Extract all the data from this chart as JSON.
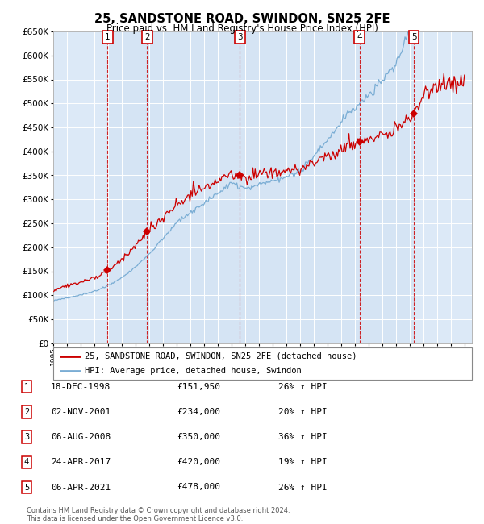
{
  "title": "25, SANDSTONE ROAD, SWINDON, SN25 2FE",
  "subtitle": "Price paid vs. HM Land Registry's House Price Index (HPI)",
  "background_color": "#ffffff",
  "plot_bg_color": "#dce9f7",
  "grid_color": "#ffffff",
  "ylim": [
    0,
    650000
  ],
  "yticks": [
    0,
    50000,
    100000,
    150000,
    200000,
    250000,
    300000,
    350000,
    400000,
    450000,
    500000,
    550000,
    600000,
    650000
  ],
  "sale_dates_num": [
    1998.96,
    2001.84,
    2008.6,
    2017.31,
    2021.27
  ],
  "sale_prices": [
    151950,
    234000,
    350000,
    420000,
    478000
  ],
  "sale_labels": [
    "1",
    "2",
    "3",
    "4",
    "5"
  ],
  "sale_date_strings": [
    "18-DEC-1998",
    "02-NOV-2001",
    "06-AUG-2008",
    "24-APR-2017",
    "06-APR-2021"
  ],
  "sale_pct_hpi": [
    "26%",
    "20%",
    "36%",
    "19%",
    "26%"
  ],
  "legend_property": "25, SANDSTONE ROAD, SWINDON, SN25 2FE (detached house)",
  "legend_hpi": "HPI: Average price, detached house, Swindon",
  "footer1": "Contains HM Land Registry data © Crown copyright and database right 2024.",
  "footer2": "This data is licensed under the Open Government Licence v3.0.",
  "red_line_color": "#cc0000",
  "blue_line_color": "#7aadd4",
  "dashed_vert_color": "#cc0000",
  "marker_color": "#cc0000",
  "xmin": 1995.0,
  "xmax": 2025.5
}
